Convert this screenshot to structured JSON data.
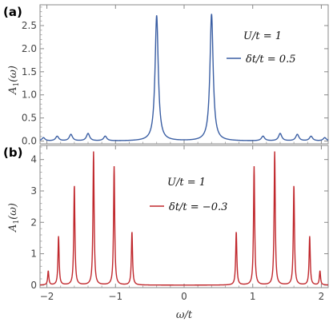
{
  "chart_data": [
    {
      "panel_label": "(a)",
      "type": "line",
      "ylabel": "A_1(ω)",
      "xlabel": "",
      "xlim": [
        -2.1,
        2.1
      ],
      "ylim": [
        -0.06,
        2.95
      ],
      "yticks": [
        0.0,
        0.5,
        1.0,
        1.5,
        2.0,
        2.5
      ],
      "ytick_labels": [
        "0.0",
        "0.5",
        "1.0",
        "1.5",
        "2.0",
        "2.5"
      ],
      "annotation": "U/t = 1",
      "color": "#3a5ea3",
      "series": [
        {
          "name": "δt/t = 0.5",
          "peaks": [
            {
              "x": -2.05,
              "y": 0.07
            },
            {
              "x": -1.85,
              "y": 0.1
            },
            {
              "x": -1.65,
              "y": 0.14
            },
            {
              "x": -1.4,
              "y": 0.16
            },
            {
              "x": -1.15,
              "y": 0.1
            },
            {
              "x": -0.4,
              "y": 2.72
            },
            {
              "x": 0.4,
              "y": 2.75
            },
            {
              "x": 1.15,
              "y": 0.1
            },
            {
              "x": 1.4,
              "y": 0.16
            },
            {
              "x": 1.65,
              "y": 0.14
            },
            {
              "x": 1.85,
              "y": 0.1
            },
            {
              "x": 2.05,
              "y": 0.07
            }
          ]
        }
      ]
    },
    {
      "panel_label": "(b)",
      "type": "line",
      "ylabel": "A_1(ω)",
      "xlabel": "ω/t",
      "xlim": [
        -2.1,
        2.1
      ],
      "ylim": [
        -0.08,
        4.45
      ],
      "xticks": [
        -2,
        -1,
        0,
        1,
        2
      ],
      "xtick_labels": [
        "−2",
        "−1",
        "0",
        "1",
        "2"
      ],
      "yticks": [
        0,
        1,
        2,
        3,
        4
      ],
      "ytick_labels": [
        "0",
        "1",
        "2",
        "3",
        "4"
      ],
      "annotation": "U/t = 1",
      "color": "#c0282d",
      "series": [
        {
          "name": "δt/t = −0.3",
          "peaks": [
            {
              "x": -1.98,
              "y": 0.45
            },
            {
              "x": -1.83,
              "y": 1.55
            },
            {
              "x": -1.6,
              "y": 3.18
            },
            {
              "x": -1.32,
              "y": 4.25
            },
            {
              "x": -1.02,
              "y": 3.78
            },
            {
              "x": -0.76,
              "y": 1.7
            },
            {
              "x": 0.76,
              "y": 1.7
            },
            {
              "x": 1.02,
              "y": 3.78
            },
            {
              "x": 1.32,
              "y": 4.25
            },
            {
              "x": 1.6,
              "y": 3.18
            },
            {
              "x": 1.83,
              "y": 1.55
            },
            {
              "x": 1.98,
              "y": 0.45
            }
          ]
        }
      ]
    }
  ]
}
